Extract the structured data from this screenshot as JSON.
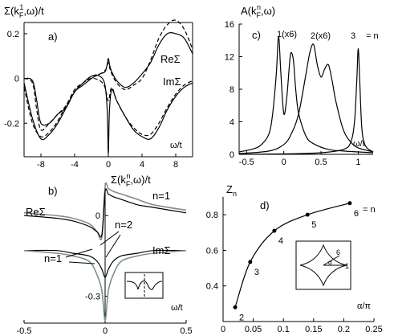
{
  "chart_data": [
    {
      "panel": "a",
      "type": "line",
      "panel_label": "a)",
      "ylabel_main": "Σ(k",
      "ylabel_sub": "F",
      "ylabel_sup": "1",
      "ylabel_tail": ",ω)/t",
      "xlabel": "ω/t",
      "xlim": [
        -10,
        10
      ],
      "ylim": [
        -0.35,
        0.25
      ],
      "xticks": [
        "-8",
        "-4",
        "0",
        "4",
        "8"
      ],
      "xtick_values": [
        -8,
        -4,
        0,
        4,
        8
      ],
      "yticks": [
        "0.2",
        "0",
        "-0.2"
      ],
      "ytick_values": [
        0.2,
        0,
        -0.2
      ],
      "legend": [
        "ReΣ",
        "ImΣ"
      ],
      "series": [
        {
          "name": "ReΣ",
          "style": "solid",
          "x": [
            -10,
            -9,
            -8.5,
            -8,
            -7,
            -6,
            -5,
            -4,
            -3,
            -2,
            -1,
            -0.4,
            -0.15,
            0,
            0.15,
            0.4,
            1,
            2,
            3,
            4,
            5,
            6,
            7,
            8,
            9,
            10
          ],
          "y": [
            0.0,
            -0.01,
            -0.1,
            -0.2,
            -0.2,
            -0.16,
            -0.13,
            -0.06,
            -0.03,
            0.0,
            0.02,
            0.03,
            0.06,
            0.09,
            0.06,
            0.03,
            -0.01,
            -0.04,
            -0.02,
            0.02,
            0.07,
            0.15,
            0.2,
            0.2,
            0.18,
            0.11
          ]
        },
        {
          "name": "ImΣ",
          "style": "solid",
          "x": [
            -10,
            -9,
            -8,
            -7,
            -6,
            -5,
            -4,
            -3,
            -2,
            -1,
            -0.4,
            -0.12,
            0,
            0.12,
            0.4,
            1,
            2,
            3,
            4,
            5,
            6,
            7,
            8,
            9,
            10
          ],
          "y": [
            -0.02,
            -0.18,
            -0.27,
            -0.25,
            -0.2,
            -0.13,
            -0.06,
            -0.02,
            0.01,
            0.01,
            -0.03,
            -0.15,
            -0.34,
            -0.15,
            -0.05,
            -0.1,
            -0.17,
            -0.23,
            -0.26,
            -0.27,
            -0.22,
            -0.14,
            -0.08,
            -0.04,
            -0.02
          ]
        },
        {
          "name": "ReΣ (dashed)",
          "style": "dashed",
          "x": [
            -10,
            -9,
            -8.5,
            -8,
            -7,
            -6,
            -5,
            -4,
            -3,
            -2,
            -1,
            -0.3,
            0,
            0.3,
            1,
            2,
            3,
            4,
            5,
            6,
            7,
            8,
            9,
            10
          ],
          "y": [
            0.0,
            -0.02,
            -0.14,
            -0.23,
            -0.2,
            -0.16,
            -0.12,
            -0.05,
            -0.02,
            0.01,
            0.02,
            0.04,
            0.07,
            0.03,
            -0.02,
            -0.05,
            -0.03,
            0.0,
            0.08,
            0.18,
            0.24,
            0.26,
            0.22,
            0.13
          ]
        },
        {
          "name": "ImΣ (dashed)",
          "style": "dashed",
          "x": [
            -10,
            -9,
            -8,
            -7,
            -6,
            -5,
            -4,
            -3,
            -2,
            -1,
            -0.4,
            0,
            0.4,
            1,
            2,
            3,
            4,
            5,
            6,
            7,
            8,
            9,
            10
          ],
          "y": [
            -0.04,
            -0.2,
            -0.26,
            -0.24,
            -0.19,
            -0.12,
            -0.06,
            -0.02,
            0.0,
            -0.01,
            -0.04,
            -0.1,
            -0.04,
            -0.1,
            -0.17,
            -0.22,
            -0.25,
            -0.25,
            -0.2,
            -0.13,
            -0.07,
            -0.03,
            -0.01
          ]
        }
      ]
    },
    {
      "panel": "b",
      "type": "line",
      "panel_label": "b)",
      "ylabel_main": "Σ(k",
      "ylabel_sub": "F",
      "ylabel_sup": "n",
      "ylabel_tail": ",ω)/t",
      "xlabel": "ω/t",
      "xlim": [
        -0.5,
        0.5
      ],
      "ylim": [
        -0.4,
        0.12
      ],
      "xticks": [
        "-0.5",
        "0",
        "0.5"
      ],
      "xtick_values": [
        -0.5,
        0,
        0.5
      ],
      "yticks": [
        "0",
        "-0.3"
      ],
      "ytick_values": [
        0,
        -0.3
      ],
      "annotations": [
        "ReΣ",
        "ImΣ",
        "n=1",
        "n=2",
        "n=1"
      ],
      "series": [
        {
          "name": "n=1",
          "label": "ReΣ",
          "color": "#7f8f8f",
          "x": [
            -0.5,
            -0.3,
            -0.2,
            -0.1,
            -0.05,
            -0.02,
            0,
            0.02,
            0.05,
            0.1,
            0.2,
            0.3,
            0.5
          ],
          "y": [
            0.01,
            0.0,
            -0.01,
            -0.03,
            -0.06,
            -0.08,
            0.11,
            0.1,
            0.09,
            0.08,
            0.06,
            0.04,
            0.02
          ]
        },
        {
          "name": "n=2",
          "label": "ReΣ",
          "color": "#000000",
          "x": [
            -0.5,
            -0.3,
            -0.2,
            -0.1,
            -0.05,
            -0.02,
            0,
            0.02,
            0.05,
            0.1,
            0.2,
            0.3,
            0.5
          ],
          "y": [
            0.0,
            -0.01,
            -0.02,
            -0.04,
            -0.06,
            -0.07,
            0.09,
            0.08,
            0.07,
            0.06,
            0.04,
            0.03,
            0.01
          ]
        },
        {
          "name": "n=2",
          "label": "ImΣ",
          "color": "#000000",
          "x": [
            -0.5,
            -0.3,
            -0.2,
            -0.1,
            -0.05,
            -0.02,
            0,
            0.02,
            0.05,
            0.1,
            0.2,
            0.3,
            0.5
          ],
          "y": [
            -0.13,
            -0.13,
            -0.14,
            -0.15,
            -0.17,
            -0.2,
            -0.23,
            -0.2,
            -0.17,
            -0.15,
            -0.14,
            -0.13,
            -0.13
          ]
        },
        {
          "name": "n=1",
          "label": "ImΣ",
          "color": "#7f8f8f",
          "x": [
            -0.5,
            -0.3,
            -0.2,
            -0.1,
            -0.05,
            -0.02,
            0,
            0.02,
            0.05,
            0.1,
            0.2,
            0.3,
            0.5
          ],
          "y": [
            -0.13,
            -0.14,
            -0.15,
            -0.17,
            -0.22,
            -0.28,
            -0.39,
            -0.28,
            -0.22,
            -0.17,
            -0.15,
            -0.14,
            -0.13
          ]
        }
      ]
    },
    {
      "panel": "c",
      "type": "line",
      "panel_label": "c)",
      "ylabel_main": "A(k",
      "ylabel_sub": "F",
      "ylabel_sup": "n",
      "ylabel_tail": ",ω)",
      "xlabel": "ω/t",
      "xlim": [
        -0.6,
        1.2
      ],
      "ylim": [
        0,
        16
      ],
      "xticks": [
        "-0.5",
        "0",
        "0.5",
        "1"
      ],
      "xtick_values": [
        -0.5,
        0,
        0.5,
        1
      ],
      "yticks": [
        "16",
        "12",
        "8",
        "4",
        "0"
      ],
      "ytick_values": [
        16,
        12,
        8,
        4,
        0
      ],
      "peak_labels": [
        "1(x6)",
        "2(x6)",
        "3",
        "= n"
      ],
      "series": [
        {
          "name": "1 (x6)",
          "x": [
            -0.6,
            -0.4,
            -0.3,
            -0.2,
            -0.15,
            -0.1,
            -0.07,
            -0.04,
            0.0,
            0.04,
            0.08,
            0.1,
            0.13,
            0.16,
            0.2,
            0.3,
            0.4,
            0.6,
            0.8,
            1.0,
            1.2
          ],
          "y": [
            0.3,
            0.7,
            1.2,
            2.5,
            5,
            10,
            14.5,
            10,
            5,
            7,
            11.5,
            12.5,
            11.5,
            8,
            5,
            2.2,
            1.3,
            0.6,
            0.4,
            0.3,
            0.2
          ]
        },
        {
          "name": "2 (x6)",
          "x": [
            -0.6,
            -0.2,
            0.0,
            0.1,
            0.2,
            0.3,
            0.35,
            0.4,
            0.45,
            0.5,
            0.55,
            0.6,
            0.65,
            0.7,
            0.8,
            0.9,
            1.0,
            1.2
          ],
          "y": [
            0.1,
            0.4,
            1.2,
            2.5,
            5,
            10,
            12.5,
            13.5,
            11,
            9.5,
            10.5,
            11,
            9,
            6.5,
            3,
            1.5,
            0.8,
            0.3
          ]
        },
        {
          "name": "3",
          "x": [
            -0.6,
            0.0,
            0.5,
            0.8,
            0.9,
            0.95,
            0.98,
            1.0,
            1.02,
            1.05,
            1.1,
            1.2
          ],
          "y": [
            0.0,
            0.05,
            0.2,
            0.6,
            1.5,
            4,
            9,
            13,
            9,
            3,
            1,
            0.3
          ]
        }
      ]
    },
    {
      "panel": "d",
      "type": "scatter",
      "panel_label": "d)",
      "ylabel_main": "Z",
      "ylabel_sub": "n",
      "xlabel": "α/π",
      "xlim": [
        0,
        0.25
      ],
      "ylim": [
        0.2,
        0.9
      ],
      "xticks": [
        "0",
        "0.05",
        "0.1",
        "0.15",
        "0.2",
        "0.25"
      ],
      "xtick_values": [
        0,
        0.05,
        0.1,
        0.15,
        0.2,
        0.25
      ],
      "yticks": [
        "0.8",
        "0.6",
        "0.4"
      ],
      "ytick_values": [
        0.8,
        0.6,
        0.4
      ],
      "suffix_label": "= n",
      "points": [
        {
          "label": "2",
          "x": 0.02,
          "y": 0.28
        },
        {
          "label": "3",
          "x": 0.045,
          "y": 0.535
        },
        {
          "label": "4",
          "x": 0.085,
          "y": 0.71
        },
        {
          "label": "5",
          "x": 0.14,
          "y": 0.8
        },
        {
          "label": "6",
          "x": 0.21,
          "y": 0.865
        }
      ],
      "inset_labels": [
        "6",
        "α",
        "1"
      ]
    }
  ]
}
